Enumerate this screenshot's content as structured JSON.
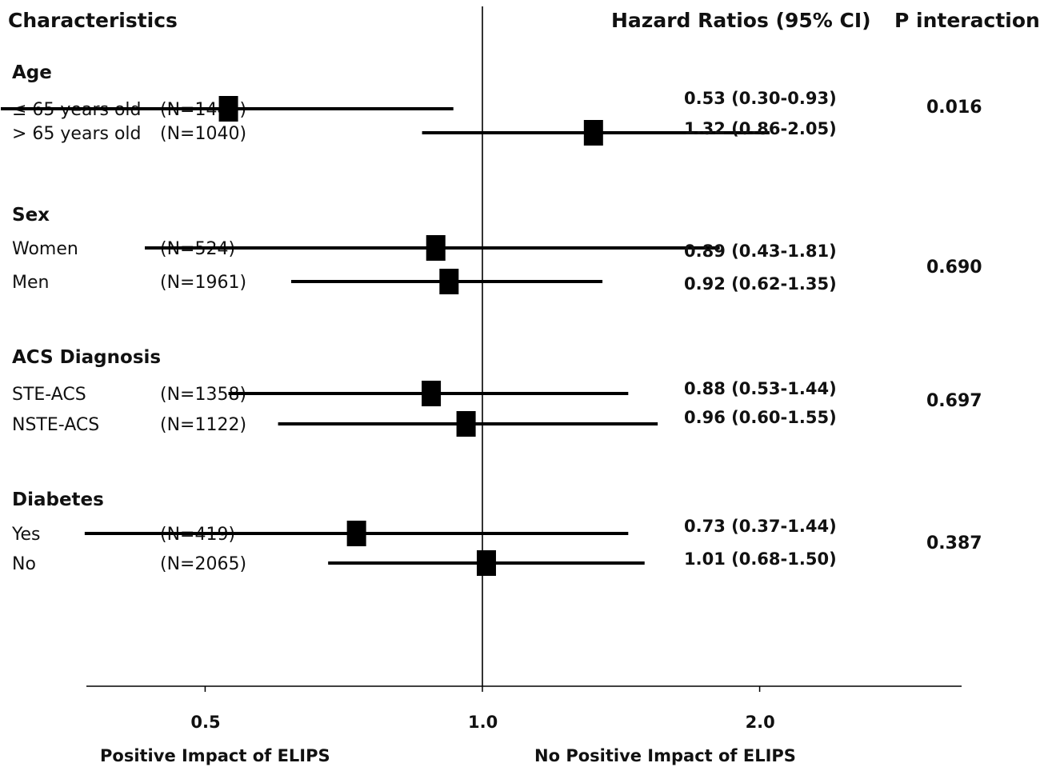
{
  "chart_data": {
    "type": "forest",
    "headers": {
      "characteristics": "Characteristics",
      "hazard_ratios": "Hazard Ratios (95% CI)",
      "p_interaction": "P interaction"
    },
    "x_axis": {
      "ticks": [
        {
          "value": 0.5,
          "label": "0.5"
        },
        {
          "value": 1.0,
          "label": "1.0"
        },
        {
          "value": 2.0,
          "label": "2.0"
        }
      ],
      "reference_value": 1.0,
      "left_label": "Positive Impact of ELIPS",
      "right_label": "No Positive Impact of ELIPS"
    },
    "groups": [
      {
        "name": "Age",
        "p_interaction": "0.016",
        "rows": [
          {
            "label": "≤ 65 years old",
            "n": "(N=1445)",
            "hr": 0.53,
            "lo": 0.3,
            "hi": 0.93,
            "hr_text": "0.53",
            "ci_text": "(0.30-0.93)"
          },
          {
            "label": "> 65 years old",
            "n": "(N=1040)",
            "hr": 1.32,
            "lo": 0.86,
            "hi": 2.05,
            "hr_text": "1.32",
            "ci_text": "(0.86-2.05)"
          }
        ]
      },
      {
        "name": "Sex",
        "p_interaction": "0.690",
        "rows": [
          {
            "label": "Women",
            "n": "(N=524)",
            "hr": 0.89,
            "lo": 0.43,
            "hi": 1.81,
            "hr_text": "0.89",
            "ci_text": "(0.43-1.81)"
          },
          {
            "label": "Men",
            "n": "(N=1961)",
            "hr": 0.92,
            "lo": 0.62,
            "hi": 1.35,
            "hr_text": "0.92",
            "ci_text": "(0.62-1.35)"
          }
        ]
      },
      {
        "name": "ACS Diagnosis",
        "p_interaction": "0.697",
        "rows": [
          {
            "label": "STE-ACS",
            "n": "(N=1358)",
            "hr": 0.88,
            "lo": 0.53,
            "hi": 1.44,
            "hr_text": "0.88",
            "ci_text": "(0.53-1.44)"
          },
          {
            "label": "NSTE-ACS",
            "n": "(N=1122)",
            "hr": 0.96,
            "lo": 0.6,
            "hi": 1.55,
            "hr_text": "0.96",
            "ci_text": "(0.60-1.55)"
          }
        ]
      },
      {
        "name": "Diabetes",
        "p_interaction": "0.387",
        "rows": [
          {
            "label": "Yes",
            "n": "(N=419)",
            "hr": 0.73,
            "lo": 0.37,
            "hi": 1.44,
            "hr_text": "0.73",
            "ci_text": "(0.37-1.44)"
          },
          {
            "label": "No",
            "n": "(N=2065)",
            "hr": 1.01,
            "lo": 0.68,
            "hi": 1.5,
            "hr_text": "1.01",
            "ci_text": "(0.68-1.50)"
          }
        ]
      }
    ]
  }
}
